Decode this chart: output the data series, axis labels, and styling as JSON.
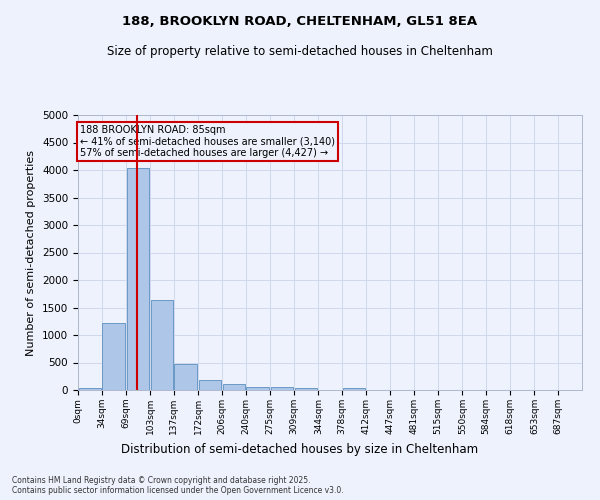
{
  "title1": "188, BROOKLYN ROAD, CHELTENHAM, GL51 8EA",
  "title2": "Size of property relative to semi-detached houses in Cheltenham",
  "xlabel": "Distribution of semi-detached houses by size in Cheltenham",
  "ylabel": "Number of semi-detached properties",
  "footer1": "Contains HM Land Registry data © Crown copyright and database right 2025.",
  "footer2": "Contains public sector information licensed under the Open Government Licence v3.0.",
  "annotation_line1": "188 BROOKLYN ROAD: 85sqm",
  "annotation_line2": "← 41% of semi-detached houses are smaller (3,140)",
  "annotation_line3": "57% of semi-detached houses are larger (4,427) →",
  "bin_labels": [
    "0sqm",
    "34sqm",
    "69sqm",
    "103sqm",
    "137sqm",
    "172sqm",
    "206sqm",
    "240sqm",
    "275sqm",
    "309sqm",
    "344sqm",
    "378sqm",
    "412sqm",
    "447sqm",
    "481sqm",
    "515sqm",
    "550sqm",
    "584sqm",
    "618sqm",
    "653sqm",
    "687sqm"
  ],
  "bin_edges": [
    0,
    34,
    69,
    103,
    137,
    172,
    206,
    240,
    275,
    309,
    344,
    378,
    412,
    447,
    481,
    515,
    550,
    584,
    618,
    653,
    687
  ],
  "bar_values": [
    30,
    1220,
    4030,
    1630,
    470,
    190,
    110,
    60,
    50,
    30,
    0,
    40,
    0,
    0,
    0,
    0,
    0,
    0,
    0,
    0
  ],
  "bar_color": "#aec6e8",
  "bar_edgecolor": "#5a8fc0",
  "vline_color": "#cc0000",
  "vline_x": 85,
  "ylim": [
    0,
    5000
  ],
  "yticks": [
    0,
    500,
    1000,
    1500,
    2000,
    2500,
    3000,
    3500,
    4000,
    4500,
    5000
  ],
  "background_color": "#eef2fc",
  "grid_color": "#d0d8ee",
  "box_color": "#cc0000",
  "title1_fontsize": 9.5,
  "title2_fontsize": 8.5,
  "ylabel_fontsize": 8,
  "xlabel_fontsize": 8.5
}
